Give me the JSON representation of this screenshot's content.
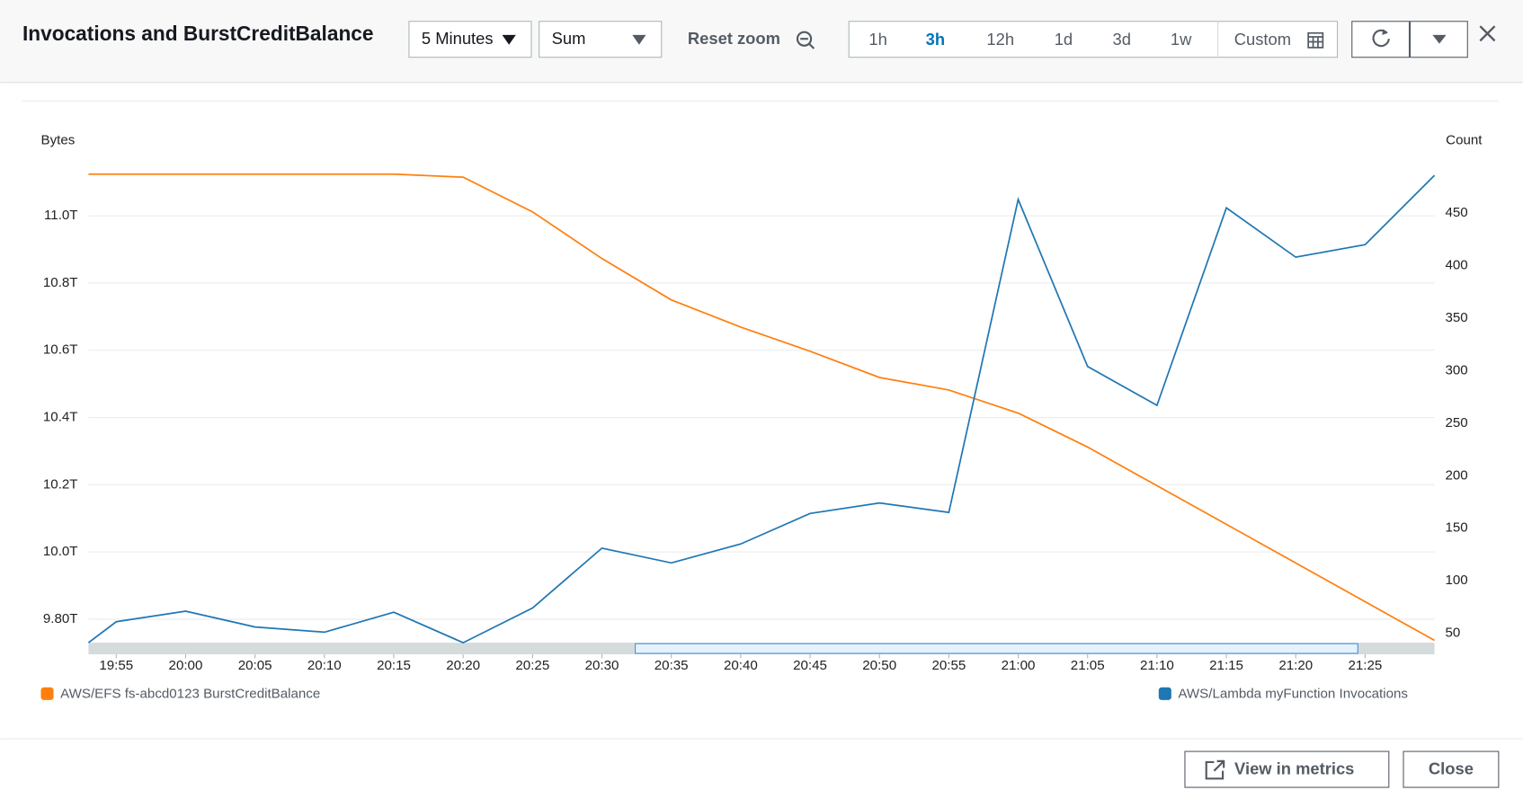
{
  "header": {
    "title": "Invocations and BurstCreditBalance",
    "period": "5 Minutes",
    "statistic": "Sum",
    "reset_zoom": "Reset zoom",
    "ranges": [
      "1h",
      "3h",
      "12h",
      "1d",
      "3d",
      "1w",
      "Custom"
    ],
    "active_range": "3h"
  },
  "chart_data": {
    "type": "line",
    "y_label": "Bytes",
    "y2_label": "Count",
    "x": [
      "19:53",
      "19:55",
      "20:00",
      "20:05",
      "20:10",
      "20:15",
      "20:20",
      "20:25",
      "20:30",
      "20:35",
      "20:40",
      "20:45",
      "20:50",
      "20:55",
      "21:00",
      "21:05",
      "21:10",
      "21:15",
      "21:20",
      "21:25",
      "21:30"
    ],
    "xlim": [
      "19:53",
      "21:30"
    ],
    "xticks": [
      "19:55",
      "20:00",
      "20:05",
      "20:10",
      "20:15",
      "20:20",
      "20:25",
      "20:30",
      "20:35",
      "20:40",
      "20:45",
      "20:50",
      "20:55",
      "21:00",
      "21:05",
      "21:10",
      "21:15",
      "21:20",
      "21:25"
    ],
    "ylim": [
      9.73,
      11.18
    ],
    "yticks": [
      {
        "value": 9.8,
        "label": "9.80T"
      },
      {
        "value": 10.0,
        "label": "10.0T"
      },
      {
        "value": 10.2,
        "label": "10.2T"
      },
      {
        "value": 10.4,
        "label": "10.4T"
      },
      {
        "value": 10.6,
        "label": "10.6T"
      },
      {
        "value": 10.8,
        "label": "10.8T"
      },
      {
        "value": 11.0,
        "label": "11.0T"
      }
    ],
    "y2lim": [
      41,
      505
    ],
    "y2ticks": [
      50,
      100,
      150,
      200,
      250,
      300,
      350,
      400,
      450
    ],
    "grid": true,
    "series": [
      {
        "name": "AWS/EFS fs-abcd0123 BurstCreditBalance",
        "color": "#ff7f0e",
        "values": [
          11.124,
          11.124,
          11.124,
          11.124,
          11.124,
          11.124,
          11.115,
          11.012,
          10.873,
          10.75,
          10.669,
          10.597,
          10.519,
          10.482,
          10.413,
          10.312,
          10.197,
          10.082,
          9.967,
          9.852,
          9.737
        ]
      },
      {
        "name": "AWS/Lambda myFunction Invocations",
        "color": "#1f77b4",
        "axis": "y2",
        "values": [
          41,
          61,
          71,
          56,
          51,
          70,
          41,
          74,
          131,
          117,
          135,
          164,
          174,
          165,
          463,
          304,
          267,
          455,
          408,
          420,
          486
        ]
      }
    ]
  },
  "footer": {
    "buttons": [
      "View in metrics",
      "Close"
    ]
  }
}
